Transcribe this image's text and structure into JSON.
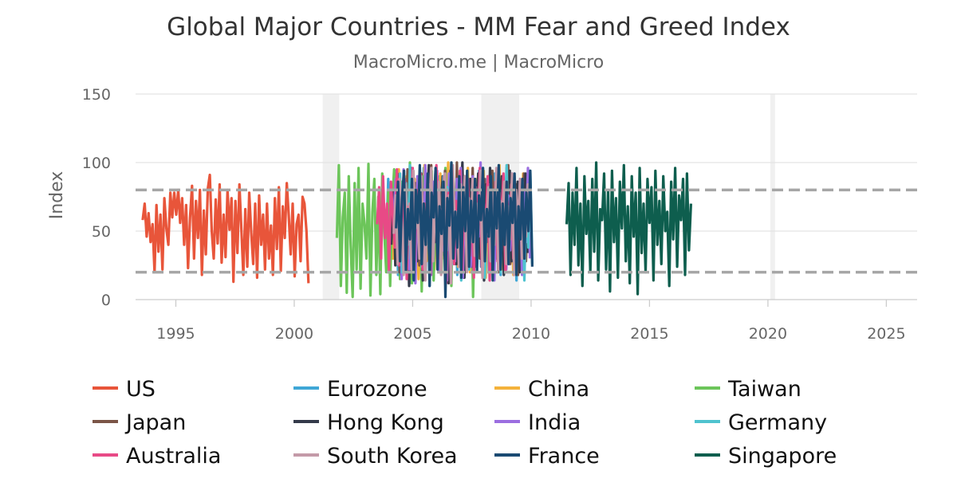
{
  "chart_data": {
    "type": "line",
    "title": "Global Major Countries - MM Fear and Greed Index",
    "subtitle": "MacroMicro.me | MacroMicro",
    "xlabel": "",
    "ylabel": "Index",
    "xlim": [
      1993.3,
      2026.3
    ],
    "ylim": [
      0,
      150
    ],
    "x_ticks": [
      "1995",
      "2000",
      "2005",
      "2010",
      "2015",
      "2020",
      "2025"
    ],
    "y_ticks": [
      "0",
      "50",
      "100",
      "150"
    ],
    "reference_lines": [
      20,
      80
    ],
    "shaded_periods": [
      [
        2001.2,
        2001.9
      ],
      [
        2007.9,
        2009.5
      ],
      [
        2020.1,
        2020.3
      ]
    ],
    "grid": true,
    "legend_position": "bottom",
    "series": [
      {
        "name": "US",
        "color": "#e8553a",
        "start": 1993.6,
        "values": [
          58,
          70,
          46,
          63,
          42,
          55,
          20,
          69,
          35,
          62,
          22,
          74,
          52,
          40,
          78,
          60,
          78,
          62,
          80,
          56,
          74,
          40,
          69,
          23,
          60,
          83,
          30,
          72,
          45,
          80,
          18,
          65,
          33,
          81,
          91,
          50,
          30,
          73,
          41,
          84,
          27,
          62,
          31,
          80,
          51,
          74,
          13,
          72,
          34,
          84,
          52,
          18,
          66,
          24,
          78,
          49,
          26,
          70,
          16,
          76,
          40,
          62,
          22,
          70,
          30,
          54,
          18,
          74,
          37,
          82,
          21,
          68,
          45,
          85,
          62,
          33,
          70,
          17,
          55,
          62,
          28,
          75,
          70,
          50,
          12
        ]
      },
      {
        "name": "Eurozone",
        "color": "#3fa7d6",
        "start": 2003.8,
        "values": [
          60,
          40,
          88,
          22,
          75,
          34,
          94,
          18,
          70,
          52,
          86,
          25,
          65,
          12,
          92,
          45,
          80,
          30,
          72,
          55,
          96,
          20,
          78,
          40,
          88,
          15,
          70,
          50,
          90,
          30,
          68,
          22,
          84,
          58,
          95,
          35,
          72,
          18,
          86,
          46,
          74,
          28,
          90,
          52,
          70,
          16,
          82,
          38,
          94,
          24,
          66,
          48,
          88,
          20,
          76,
          56,
          92,
          30,
          70,
          18,
          84,
          44,
          96,
          26,
          72,
          52,
          88,
          14,
          68,
          40
        ]
      },
      {
        "name": "China",
        "color": "#f4b23b",
        "start": 2004.0,
        "values": [
          50,
          70,
          30,
          85,
          45,
          95,
          25,
          65,
          55,
          90,
          20,
          75,
          35,
          88,
          60,
          15,
          80,
          42,
          98,
          28,
          70,
          50,
          86,
          22,
          66,
          38,
          92,
          30,
          74,
          58,
          100,
          18,
          82,
          46,
          70,
          24,
          90,
          36,
          64,
          55,
          96,
          20,
          78,
          44,
          88,
          30,
          68,
          52,
          94,
          16,
          72,
          40,
          86,
          26,
          62,
          58,
          98,
          22,
          76,
          48,
          90,
          34,
          70,
          18,
          84,
          50,
          66,
          28,
          92,
          44
        ]
      },
      {
        "name": "Taiwan",
        "color": "#6cc55a",
        "start": 2001.8,
        "values": [
          45,
          98,
          10,
          60,
          78,
          5,
          90,
          40,
          2,
          85,
          22,
          96,
          8,
          70,
          55,
          30,
          99,
          3,
          64,
          88,
          18,
          75,
          4,
          92,
          50,
          20,
          80,
          10,
          68,
          95,
          35,
          58,
          15,
          86,
          42,
          72,
          28,
          100,
          12,
          62,
          84,
          32,
          76,
          6,
          90,
          46,
          66,
          24,
          94,
          14,
          70,
          52,
          82,
          20,
          60,
          96,
          38,
          74,
          10,
          88,
          48,
          64,
          26,
          92,
          16,
          78,
          56,
          30,
          86,
          2,
          70,
          58
        ]
      },
      {
        "name": "Japan",
        "color": "#7b5547",
        "start": 2004.2,
        "values": [
          70,
          35,
          90,
          20,
          62,
          80,
          28,
          95,
          40,
          75,
          15,
          85,
          50,
          25,
          92,
          60,
          18,
          78,
          44,
          98,
          30,
          66,
          88,
          22,
          72,
          52,
          94,
          14,
          68,
          46,
          86,
          26,
          100,
          38,
          74,
          20,
          90,
          56,
          64,
          32,
          96,
          24,
          80,
          48,
          70,
          16,
          88,
          42,
          76,
          30,
          94,
          58,
          66,
          20,
          86,
          36,
          72,
          50,
          98,
          26,
          62,
          44,
          84,
          18,
          78,
          54,
          92,
          28,
          70,
          40
        ]
      },
      {
        "name": "Hong Kong",
        "color": "#343a4a",
        "start": 2004.1,
        "values": [
          40,
          80,
          25,
          92,
          55,
          18,
          85,
          35,
          70,
          10,
          96,
          45,
          66,
          28,
          88,
          50,
          14,
          78,
          60,
          98,
          22,
          72,
          42,
          86,
          20,
          64,
          90,
          32,
          74,
          12,
          94,
          48,
          68,
          26,
          82,
          56,
          100,
          16,
          76,
          38,
          88,
          24,
          70,
          52,
          92,
          30,
          62,
          14,
          84,
          46,
          96,
          22,
          74,
          36,
          66,
          58,
          90,
          18,
          80,
          42,
          94,
          28,
          70,
          50,
          86,
          20,
          64,
          40,
          92,
          34
        ]
      },
      {
        "name": "India",
        "color": "#9b6ee0",
        "start": 2004.2,
        "values": [
          60,
          88,
          30,
          75,
          15,
          95,
          48,
          70,
          22,
          84,
          55,
          12,
          90,
          38,
          66,
          26,
          98,
          44,
          72,
          18,
          86,
          58,
          94,
          20,
          64,
          36,
          80,
          14,
          92,
          50,
          70,
          28,
          88,
          42,
          96,
          16,
          74,
          54,
          62,
          24,
          90,
          34,
          78,
          46,
          100,
          20,
          66,
          52,
          84,
          30,
          72,
          14,
          94,
          40,
          68,
          58,
          86,
          22,
          76,
          36,
          92,
          26,
          64,
          48,
          88,
          18,
          80,
          42,
          96,
          30
        ]
      },
      {
        "name": "Germany",
        "color": "#4fc3cf",
        "start": 2004.3,
        "values": [
          72,
          40,
          92,
          20,
          66,
          85,
          30,
          98,
          50,
          14,
          80,
          60,
          94,
          24,
          70,
          44,
          88,
          10,
          76,
          56,
          96,
          28,
          64,
          38,
          90,
          18,
          82,
          52,
          100,
          26,
          68,
          46,
          86,
          14,
          74,
          58,
          94,
          22,
          62,
          40,
          88,
          30,
          78,
          48,
          96,
          16,
          70,
          54,
          84,
          28,
          66,
          42,
          92,
          20,
          80,
          56,
          98,
          32,
          64,
          46,
          90,
          24,
          72,
          50,
          86,
          14,
          76,
          38,
          94,
          26
        ]
      },
      {
        "name": "Australia",
        "color": "#e84a86",
        "start": 2003.5,
        "values": [
          55,
          82,
          30,
          90,
          45,
          70,
          20,
          86,
          60,
          38,
          95,
          25,
          74,
          52,
          88,
          15,
          68,
          42,
          96,
          28,
          80,
          56,
          92,
          22,
          70,
          46,
          84,
          18,
          76,
          60,
          98,
          30,
          66,
          40,
          90,
          12,
          78,
          54,
          86,
          26,
          72,
          44,
          94,
          20,
          68,
          58,
          88,
          32,
          74,
          16,
          82,
          48,
          96,
          24,
          70,
          50,
          90,
          14,
          64,
          42,
          86,
          28,
          78,
          56,
          92,
          20,
          72,
          46,
          84,
          30,
          66
        ]
      },
      {
        "name": "South Korea",
        "color": "#c49aa8",
        "start": 2004.2,
        "values": [
          48,
          76,
          26,
          88,
          58,
          18,
          84,
          40,
          70,
          22,
          94,
          52,
          66,
          30,
          90,
          44,
          14,
          80,
          62,
          96,
          28,
          72,
          50,
          86,
          18,
          68,
          92,
          36,
          76,
          12,
          98,
          46,
          64,
          24,
          84,
          54,
          90,
          20,
          74,
          42,
          88,
          32,
          70,
          56,
          94,
          16,
          66,
          48,
          82,
          28,
          78,
          40,
          96,
          22,
          72,
          58,
          86,
          26,
          68,
          44,
          92,
          18,
          80,
          52,
          88,
          30,
          62,
          46,
          84,
          78
        ]
      },
      {
        "name": "France",
        "color": "#1a4a72",
        "start": 2004.3,
        "values": [
          52,
          86,
          28,
          74,
          94,
          20,
          66,
          44,
          88,
          14,
          80,
          56,
          98,
          26,
          70,
          40,
          92,
          10,
          78,
          60,
          96,
          22,
          68,
          48,
          86,
          2,
          74,
          54,
          100,
          30,
          64,
          38,
          90,
          16,
          82,
          50,
          94,
          24,
          72,
          42,
          88,
          20,
          76,
          58,
          96,
          28,
          66,
          46,
          90,
          14,
          80,
          52,
          98,
          22,
          70,
          40,
          86,
          26,
          74,
          56,
          92,
          18,
          68,
          44,
          88,
          30,
          78,
          50,
          94,
          24
        ]
      },
      {
        "name": "Singapore",
        "color": "#0e5e4e",
        "start": 2011.5,
        "values": [
          55,
          85,
          18,
          78,
          40,
          96,
          25,
          70,
          10,
          90,
          48,
          72,
          20,
          88,
          35,
          100,
          14,
          66,
          58,
          92,
          22,
          80,
          6,
          94,
          42,
          74,
          16,
          86,
          52,
          98,
          28,
          68,
          12,
          90,
          46,
          78,
          4,
          96,
          34,
          70,
          20,
          88,
          56,
          82,
          14,
          94,
          40,
          72,
          26,
          90,
          50,
          64,
          10,
          86,
          44,
          96,
          24,
          76,
          58,
          88,
          18,
          92,
          36,
          70
        ]
      }
    ]
  }
}
